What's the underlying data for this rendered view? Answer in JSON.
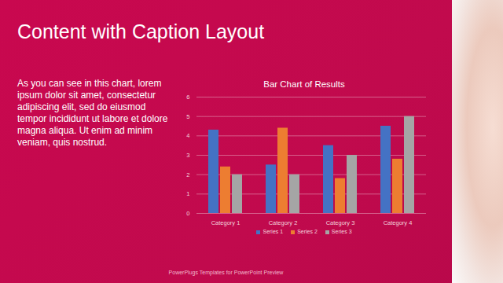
{
  "slide": {
    "title": "Content with Caption Layout",
    "caption": "As you can see in this chart, lorem ipsum dolor sit amet, consectetur adipiscing elit, sed do eiusmod tempor incididunt ut labore et dolore magna aliqua. Ut enim ad minim veniam, quis nostrud.",
    "footer": "PowerPlugs Templates for PowerPoint Preview"
  },
  "chart_data": {
    "type": "bar",
    "title": "Bar Chart of Results",
    "categories": [
      "Category 1",
      "Category 2",
      "Category 3",
      "Category 4"
    ],
    "series": [
      {
        "name": "Series 1",
        "color": "#4472c4",
        "values": [
          4.3,
          2.5,
          3.5,
          4.5
        ]
      },
      {
        "name": "Series 2",
        "color": "#ed7d31",
        "values": [
          2.4,
          4.4,
          1.8,
          2.8
        ]
      },
      {
        "name": "Series 3",
        "color": "#a5a5a5",
        "values": [
          2,
          2,
          3,
          5
        ]
      }
    ],
    "ylim": [
      0,
      6
    ],
    "yticks": [
      0,
      1,
      2,
      3,
      4,
      5,
      6
    ],
    "grid": true,
    "legend": "bottom"
  }
}
